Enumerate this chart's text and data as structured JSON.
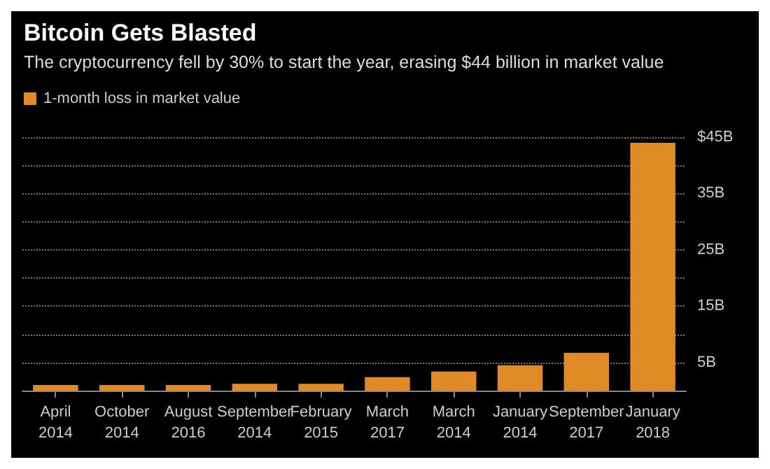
{
  "chart_data": {
    "type": "bar",
    "title": "Bitcoin Gets Blasted",
    "subtitle": "The cryptocurrency fell by 30% to start the year, erasing $44 billion in market value",
    "categories": [
      "April\n2014",
      "October\n2014",
      "August\n2016",
      "September\n2014",
      "February\n2015",
      "March\n2017",
      "March\n2014",
      "January\n2014",
      "September\n2017",
      "January\n2018"
    ],
    "series": [
      {
        "name": "1-month loss in market value",
        "color": "#e08b25",
        "values": [
          1.0,
          1.0,
          1.0,
          1.2,
          1.2,
          2.4,
          3.4,
          4.5,
          6.7,
          44
        ]
      }
    ],
    "ylim": [
      0,
      45
    ],
    "yticks": [
      {
        "value": 5,
        "label": "5B"
      },
      {
        "value": 10,
        "label": null
      },
      {
        "value": 15,
        "label": "15B"
      },
      {
        "value": 20,
        "label": null
      },
      {
        "value": 25,
        "label": "25B"
      },
      {
        "value": 30,
        "label": null
      },
      {
        "value": 35,
        "label": "35B"
      },
      {
        "value": 40,
        "label": null
      },
      {
        "value": 45,
        "label": "$45B"
      }
    ],
    "grid": "y",
    "legend": "top left"
  }
}
